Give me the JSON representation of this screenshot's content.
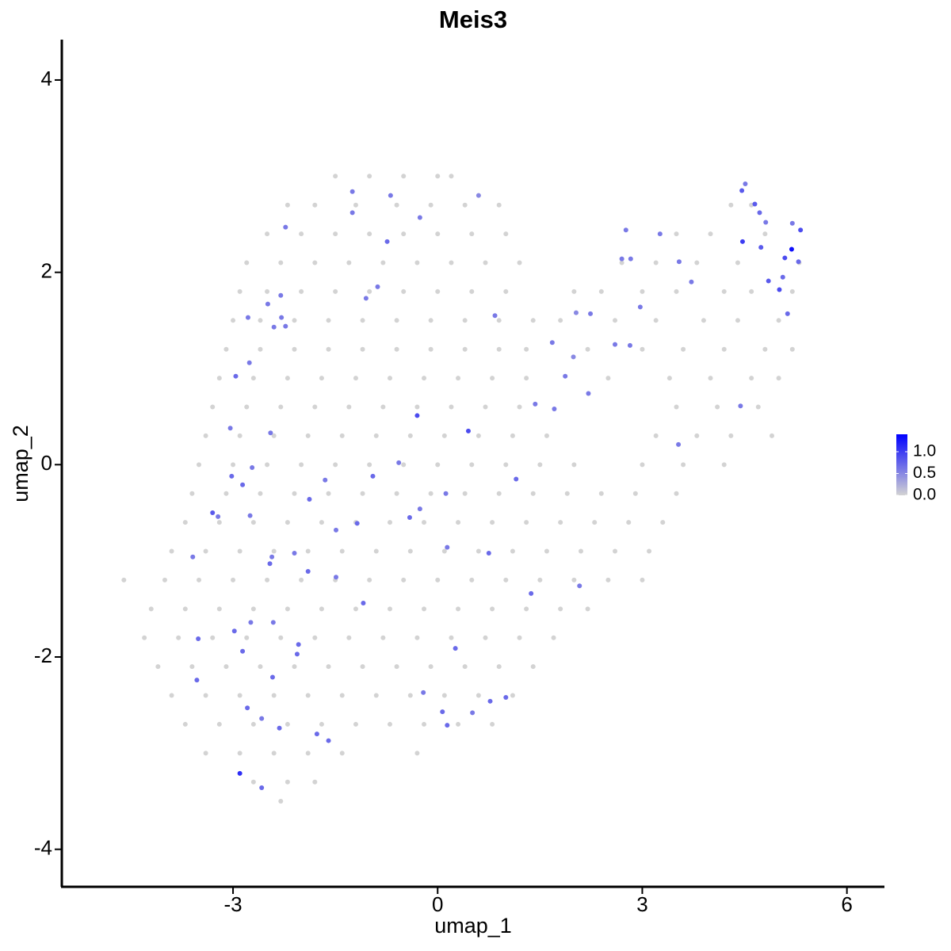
{
  "chart_data": {
    "type": "scatter",
    "title": "Meis3",
    "x_label": "umap_1",
    "y_label": "umap_2",
    "xlim": [
      -5.51,
      6.55
    ],
    "ylim": [
      -4.39,
      4.42
    ],
    "xticks": [
      -3,
      0,
      3,
      6
    ],
    "yticks": [
      -4,
      -2,
      0,
      2,
      4
    ],
    "color_low": "#d3d3d3",
    "color_high": "#0000ff",
    "legend_lim": [
      0,
      1.4
    ],
    "legend_ticks": [
      {
        "value": 0,
        "label": "0.0"
      },
      {
        "value": 0.5,
        "label": "0.5"
      },
      {
        "value": 1,
        "label": "1.0"
      }
    ],
    "x": [
      -1.5,
      -1,
      -0.5,
      0,
      0.2,
      -2.2,
      -1.8,
      -1.2,
      -0.6,
      -0.1,
      0.4,
      0.9,
      4.3,
      4.6,
      -2.5,
      -2,
      -1.5,
      -1,
      -0.5,
      0,
      0.5,
      1.0,
      3.5,
      4.0,
      4.8,
      -2.8,
      -2.3,
      -1.8,
      -1.3,
      -0.8,
      -0.3,
      0.2,
      0.7,
      1.2,
      2.7,
      3.2,
      3.8,
      4.4,
      5.3,
      -2.9,
      -2.5,
      -2,
      -1.5,
      -1,
      -0.5,
      0,
      0.5,
      1,
      2.0,
      2.4,
      3.0,
      3.5,
      4.2,
      4.6,
      5.2,
      -3,
      -2.6,
      -2.1,
      -1.6,
      -1.1,
      -0.6,
      -0.1,
      0.4,
      0.9,
      1.4,
      1.8,
      2.6,
      3.2,
      3.9,
      4.4,
      5.0,
      -3.1,
      -2.6,
      -2.1,
      -1.6,
      -1.1,
      -0.6,
      -0.1,
      0.4,
      0.9,
      1.3,
      2.2,
      3.0,
      3.6,
      4.2,
      4.8,
      5.2,
      -3.2,
      -2.7,
      -2.2,
      -1.7,
      -1.2,
      -0.7,
      -0.2,
      0.3,
      0.8,
      1.3,
      2.5,
      3.4,
      4.0,
      4.6,
      5.0,
      -3.3,
      -2.8,
      -2.3,
      -1.8,
      -1.3,
      -0.8,
      -0.3,
      0.2,
      0.7,
      1.2,
      3.5,
      4.1,
      4.7,
      -3.4,
      -2.9,
      -2.4,
      -1.9,
      -1.4,
      -0.9,
      -0.4,
      0.1,
      0.6,
      1.1,
      1.6,
      3.2,
      3.8,
      4.3,
      4.9,
      -3.5,
      -3,
      -2.5,
      -2,
      -1.5,
      -1,
      -0.5,
      0,
      0.5,
      1,
      1.5,
      2.0,
      3.0,
      3.6,
      4.2,
      -3.6,
      -3.1,
      -2.6,
      -2.1,
      -1.6,
      -1.1,
      -0.6,
      -0.1,
      0.4,
      0.9,
      1.4,
      1.9,
      2.4,
      2.9,
      3.5,
      -3.7,
      -3.2,
      -2.7,
      -2.2,
      -1.7,
      -1.2,
      -0.7,
      -0.2,
      0.3,
      0.8,
      1.3,
      1.8,
      2.3,
      2.8,
      3.3,
      -3.9,
      -3.4,
      -2.9,
      -2.4,
      -1.9,
      -1.4,
      -0.9,
      -0.4,
      0.1,
      0.6,
      1.1,
      1.6,
      2.1,
      2.6,
      3.1,
      -4.6,
      -4,
      -3.5,
      -3,
      -2.5,
      -2,
      -1.5,
      -1,
      -0.5,
      0,
      0.5,
      1,
      1.5,
      2.0,
      2.5,
      3.0,
      -4.2,
      -3.7,
      -3.2,
      -2.7,
      -2.2,
      -1.7,
      -1.2,
      -0.7,
      -0.2,
      0.3,
      0.8,
      1.3,
      1.8,
      2.2,
      -4.3,
      -3.8,
      -3.3,
      -2.8,
      -2.3,
      -1.8,
      -1.3,
      -0.8,
      -0.3,
      0.2,
      0.7,
      1.2,
      1.7,
      -4.1,
      -3.6,
      -3.1,
      -2.6,
      -2.1,
      -1.6,
      -1.1,
      -0.6,
      -0.1,
      0.4,
      0.9,
      1.4,
      -3.9,
      -3.4,
      -2.9,
      -2.4,
      -1.9,
      -1.4,
      -0.9,
      -0.4,
      0.1,
      0.6,
      1.1,
      -3.7,
      -3.2,
      -2.7,
      -2.2,
      -1.7,
      -1.2,
      -0.7,
      -0.2,
      0.3,
      0.8,
      -3.4,
      -2.9,
      -2.4,
      -1.9,
      -1.4,
      -0.3,
      -2.7,
      -2.2,
      -1.8,
      -2.3,
      5.19,
      5.32,
      5.01,
      4.85,
      5.06,
      4.47,
      4.46,
      4.65,
      4.72,
      4.81,
      5.2,
      5.09,
      5.29,
      5.13,
      4.74,
      4.51,
      3.72,
      3.54,
      3.26,
      2.76,
      2.83,
      2.7,
      2.97,
      2.6,
      2.82,
      2.24,
      2.03,
      1.68,
      1.99,
      1.87,
      2.21,
      1.71,
      1.43,
      4.44,
      3.53,
      0.84,
      0.45,
      -0.3,
      1.15,
      0.12,
      -0.26,
      -0.41,
      -0.57,
      -0.95,
      0.14,
      0.75,
      1.37,
      2.08,
      -1.09,
      -1.49,
      -1.9,
      -2.1,
      -2.46,
      -1.88,
      -1.65,
      -1.49,
      -1.18,
      -2.72,
      -2.86,
      -3.02,
      -2.75,
      -3.22,
      -3.3,
      -3.59,
      -3.04,
      -2.96,
      -2.76,
      -2.45,
      -2.43,
      -2.41,
      -2.74,
      -2.98,
      -2.86,
      -3.51,
      -3.53,
      -2.42,
      -2.04,
      -2.06,
      -2.79,
      -2.58,
      -2.32,
      -1.77,
      -1.6,
      -2.9,
      -2.58,
      -0.21,
      0.07,
      0.14,
      0.26,
      0.51,
      0.77,
      1.0,
      -2.23,
      -2.3,
      -2.49,
      -2.29,
      -2.4,
      -2.23,
      -2.78,
      -1.25,
      -1.25,
      -1.05,
      -0.88,
      -0.74,
      -0.69,
      -0.26,
      0.6
    ],
    "y": [
      3.0,
      3.0,
      3.0,
      3.0,
      3.0,
      2.7,
      2.7,
      2.7,
      2.7,
      2.7,
      2.7,
      2.7,
      2.7,
      2.7,
      2.4,
      2.4,
      2.4,
      2.4,
      2.4,
      2.4,
      2.4,
      2.4,
      2.4,
      2.4,
      2.4,
      2.1,
      2.1,
      2.1,
      2.1,
      2.1,
      2.1,
      2.1,
      2.1,
      2.1,
      2.1,
      2.1,
      2.1,
      2.1,
      2.1,
      1.8,
      1.8,
      1.8,
      1.8,
      1.8,
      1.8,
      1.8,
      1.8,
      1.8,
      1.8,
      1.8,
      1.8,
      1.8,
      1.8,
      1.8,
      1.8,
      1.5,
      1.5,
      1.5,
      1.5,
      1.5,
      1.5,
      1.5,
      1.5,
      1.5,
      1.5,
      1.5,
      1.5,
      1.5,
      1.5,
      1.5,
      1.5,
      1.2,
      1.2,
      1.2,
      1.2,
      1.2,
      1.2,
      1.2,
      1.2,
      1.2,
      1.2,
      1.2,
      1.2,
      1.2,
      1.2,
      1.2,
      1.2,
      0.9,
      0.9,
      0.9,
      0.9,
      0.9,
      0.9,
      0.9,
      0.9,
      0.9,
      0.9,
      0.9,
      0.9,
      0.9,
      0.9,
      0.9,
      0.6,
      0.6,
      0.6,
      0.6,
      0.6,
      0.6,
      0.6,
      0.6,
      0.6,
      0.6,
      0.6,
      0.6,
      0.6,
      0.3,
      0.3,
      0.3,
      0.3,
      0.3,
      0.3,
      0.3,
      0.3,
      0.3,
      0.3,
      0.3,
      0.3,
      0.3,
      0.3,
      0.3,
      0,
      0,
      0,
      0,
      0,
      0,
      0,
      0,
      0,
      0,
      0,
      0,
      0,
      0,
      0,
      -0.3,
      -0.3,
      -0.3,
      -0.3,
      -0.3,
      -0.3,
      -0.3,
      -0.3,
      -0.3,
      -0.3,
      -0.3,
      -0.3,
      -0.3,
      -0.3,
      -0.3,
      -0.6,
      -0.6,
      -0.6,
      -0.6,
      -0.6,
      -0.6,
      -0.6,
      -0.6,
      -0.6,
      -0.6,
      -0.6,
      -0.6,
      -0.6,
      -0.6,
      -0.6,
      -0.9,
      -0.9,
      -0.9,
      -0.9,
      -0.9,
      -0.9,
      -0.9,
      -0.9,
      -0.9,
      -0.9,
      -0.9,
      -0.9,
      -0.9,
      -0.9,
      -0.9,
      -1.2,
      -1.2,
      -1.2,
      -1.2,
      -1.2,
      -1.2,
      -1.2,
      -1.2,
      -1.2,
      -1.2,
      -1.2,
      -1.2,
      -1.2,
      -1.2,
      -1.2,
      -1.2,
      -1.5,
      -1.5,
      -1.5,
      -1.5,
      -1.5,
      -1.5,
      -1.5,
      -1.5,
      -1.5,
      -1.5,
      -1.5,
      -1.5,
      -1.5,
      -1.5,
      -1.8,
      -1.8,
      -1.8,
      -1.8,
      -1.8,
      -1.8,
      -1.8,
      -1.8,
      -1.8,
      -1.8,
      -1.8,
      -1.8,
      -1.8,
      -2.1,
      -2.1,
      -2.1,
      -2.1,
      -2.1,
      -2.1,
      -2.1,
      -2.1,
      -2.1,
      -2.1,
      -2.1,
      -2.1,
      -2.4,
      -2.4,
      -2.4,
      -2.4,
      -2.4,
      -2.4,
      -2.4,
      -2.4,
      -2.4,
      -2.4,
      -2.4,
      -2.7,
      -2.7,
      -2.7,
      -2.7,
      -2.7,
      -2.7,
      -2.7,
      -2.7,
      -2.7,
      -2.7,
      -3.0,
      -3.0,
      -3.0,
      -3.0,
      -3.0,
      -3.0,
      -3.3,
      -3.3,
      -3.3,
      -3.5,
      2.24,
      2.44,
      1.82,
      1.91,
      1.95,
      2.32,
      2.85,
      2.71,
      2.62,
      2.52,
      2.51,
      2.15,
      2.11,
      1.57,
      2.26,
      2.92,
      1.9,
      2.11,
      2.4,
      2.44,
      2.14,
      2.14,
      1.64,
      1.25,
      1.24,
      1.57,
      1.58,
      1.27,
      1.12,
      0.92,
      0.74,
      0.58,
      0.63,
      0.61,
      0.21,
      1.55,
      0.35,
      0.51,
      -0.15,
      -0.3,
      -0.46,
      -0.55,
      0.02,
      -0.12,
      -0.86,
      -0.92,
      -1.34,
      -1.26,
      -1.44,
      -1.17,
      -1.11,
      -0.92,
      -1.03,
      -0.36,
      -0.16,
      -0.68,
      -0.61,
      -0.03,
      -0.21,
      -0.12,
      -0.53,
      -0.54,
      -0.5,
      -0.96,
      0.38,
      0.92,
      1.06,
      0.33,
      -0.96,
      -1.64,
      -1.64,
      -1.73,
      -1.94,
      -1.81,
      -2.24,
      -2.21,
      -1.87,
      -1.97,
      -2.53,
      -2.64,
      -2.74,
      -2.8,
      -2.87,
      -3.21,
      -3.36,
      -2.37,
      -2.57,
      -2.71,
      -1.91,
      -2.58,
      -2.46,
      -2.42,
      2.47,
      1.76,
      1.67,
      1.53,
      1.43,
      1.44,
      1.53,
      2.62,
      2.84,
      1.73,
      1.85,
      2.32,
      2.8,
      2.57,
      2.8
    ],
    "expression": [
      0,
      0,
      0,
      0,
      0,
      0,
      0,
      0,
      0,
      0,
      0,
      0,
      0,
      0,
      0,
      0,
      0,
      0,
      0,
      0,
      0,
      0,
      0,
      0,
      0,
      0,
      0,
      0,
      0,
      0,
      0,
      0,
      0,
      0,
      0,
      0,
      0,
      0,
      0,
      0,
      0,
      0,
      0,
      0,
      0,
      0,
      0,
      0,
      0,
      0,
      0,
      0,
      0,
      0,
      0,
      0,
      0,
      0,
      0,
      0,
      0,
      0,
      0,
      0,
      0,
      0,
      0,
      0,
      0,
      0,
      0,
      0,
      0,
      0,
      0,
      0,
      0,
      0,
      0,
      0,
      0,
      0,
      0,
      0,
      0,
      0,
      0,
      0,
      0,
      0,
      0,
      0,
      0,
      0,
      0,
      0,
      0,
      0,
      0,
      0,
      0,
      0,
      0,
      0,
      0,
      0,
      0,
      0,
      0,
      0,
      0,
      0,
      0,
      0,
      0,
      0,
      0,
      0,
      0,
      0,
      0,
      0,
      0,
      0,
      0,
      0,
      0,
      0,
      0,
      0,
      0,
      0,
      0,
      0,
      0,
      0,
      0,
      0,
      0,
      0,
      0,
      0,
      0,
      0,
      0,
      0,
      0,
      0,
      0,
      0,
      0,
      0,
      0,
      0,
      0,
      0,
      0,
      0,
      0,
      0,
      0,
      0,
      0,
      0,
      0,
      0,
      0,
      0,
      0,
      0,
      0,
      0,
      0,
      0,
      0,
      0,
      0,
      0,
      0,
      0,
      0,
      0,
      0,
      0,
      0,
      0,
      0,
      0,
      0,
      0,
      0,
      0,
      0,
      0,
      0,
      0,
      0,
      0,
      0,
      0,
      0,
      0,
      0,
      0,
      0,
      0,
      0,
      0,
      0,
      0,
      0,
      0,
      0,
      0,
      0,
      0,
      0,
      0,
      0,
      0,
      0,
      0,
      0,
      0,
      0,
      0,
      0,
      0,
      0,
      0,
      0,
      0,
      0,
      0,
      0,
      0,
      0,
      0,
      0,
      0,
      0,
      0,
      0,
      0,
      0,
      0,
      0,
      0,
      0,
      0,
      0,
      0,
      0,
      0,
      0,
      0,
      0,
      0,
      0,
      0,
      0,
      0,
      0,
      0,
      0,
      0,
      0,
      0,
      0,
      0,
      0,
      0,
      0,
      0,
      0,
      0,
      1.3,
      0.9,
      0.9,
      0.8,
      0.7,
      1.0,
      0.8,
      0.8,
      0.7,
      0.6,
      0.6,
      0.9,
      0.7,
      0.7,
      0.8,
      0.6,
      0.6,
      0.6,
      0.6,
      0.6,
      0.6,
      0.6,
      0.6,
      0.6,
      0.6,
      0.6,
      0.5,
      0.6,
      0.5,
      0.6,
      0.6,
      0.6,
      0.6,
      0.6,
      0.6,
      0.6,
      0.9,
      0.9,
      0.7,
      0.6,
      0.6,
      0.7,
      0.6,
      0.7,
      0.6,
      0.7,
      0.7,
      0.6,
      0.7,
      0.6,
      0.7,
      0.6,
      0.7,
      0.7,
      0.6,
      0.6,
      0.7,
      0.6,
      0.7,
      0.7,
      0.6,
      0.6,
      0.8,
      0.6,
      0.6,
      0.7,
      0.6,
      0.6,
      0.6,
      0.6,
      0.6,
      0.7,
      0.7,
      0.7,
      0.7,
      0.7,
      0.7,
      0.7,
      0.7,
      0.6,
      0.7,
      0.7,
      0.7,
      1.1,
      0.7,
      0.6,
      0.7,
      0.7,
      0.7,
      0.6,
      0.7,
      0.7,
      0.6,
      0.6,
      0.6,
      0.6,
      0.6,
      0.6,
      0.6,
      0.6,
      0.6,
      0.6,
      0.6,
      0.7,
      0.6,
      0.6,
      0.5
    ]
  }
}
